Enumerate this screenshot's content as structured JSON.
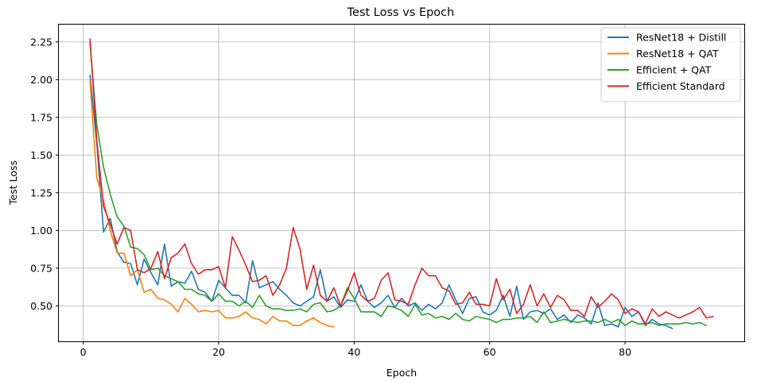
{
  "chart_data": {
    "type": "line",
    "title": "Test Loss vs Epoch",
    "xlabel": "Epoch",
    "ylabel": "Test Loss",
    "xlim": [
      -3.6,
      97.6
    ],
    "ylim": [
      0.265,
      2.365
    ],
    "xticks": [
      0,
      20,
      40,
      60,
      80
    ],
    "yticks": [
      0.5,
      0.75,
      1.0,
      1.25,
      1.5,
      1.75,
      2.0,
      2.25
    ],
    "ytick_labels": [
      "0.50",
      "0.75",
      "1.00",
      "1.25",
      "1.50",
      "1.75",
      "2.00",
      "2.25"
    ],
    "grid": true,
    "legend_position": "top-right",
    "series": [
      {
        "name": "ResNet18 + Distill",
        "color": "#1f77b4",
        "y": [
          2.03,
          1.58,
          0.99,
          1.08,
          0.86,
          0.79,
          0.78,
          0.64,
          0.81,
          0.72,
          0.64,
          0.91,
          0.63,
          0.66,
          0.65,
          0.73,
          0.61,
          0.59,
          0.53,
          0.67,
          0.62,
          0.57,
          0.57,
          0.52,
          0.8,
          0.62,
          0.64,
          0.66,
          0.61,
          0.57,
          0.52,
          0.5,
          0.53,
          0.56,
          0.74,
          0.53,
          0.56,
          0.49,
          0.54,
          0.53,
          0.64,
          0.53,
          0.49,
          0.52,
          0.57,
          0.49,
          0.55,
          0.5,
          0.52,
          0.47,
          0.51,
          0.48,
          0.52,
          0.64,
          0.54,
          0.45,
          0.55,
          0.56,
          0.46,
          0.44,
          0.47,
          0.57,
          0.43,
          0.63,
          0.41,
          0.46,
          0.47,
          0.45,
          0.48,
          0.41,
          0.44,
          0.39,
          0.44,
          0.42,
          0.38,
          0.52,
          0.37,
          0.38,
          0.36,
          0.49,
          0.43,
          0.46,
          0.37,
          0.41,
          0.38,
          0.37,
          0.35
        ]
      },
      {
        "name": "ResNet18 + QAT",
        "color": "#ff7f0e",
        "y": [
          1.99,
          1.35,
          1.2,
          1.0,
          0.85,
          0.85,
          0.7,
          0.74,
          0.59,
          0.61,
          0.55,
          0.54,
          0.51,
          0.46,
          0.55,
          0.51,
          0.46,
          0.47,
          0.46,
          0.47,
          0.42,
          0.42,
          0.43,
          0.46,
          0.42,
          0.41,
          0.38,
          0.43,
          0.4,
          0.4,
          0.37,
          0.37,
          0.4,
          0.42,
          0.39,
          0.37,
          0.36
        ]
      },
      {
        "name": "Efficient + QAT",
        "color": "#2ca02c",
        "y": [
          2.24,
          1.7,
          1.42,
          1.24,
          1.09,
          1.03,
          0.89,
          0.88,
          0.84,
          0.74,
          0.75,
          0.7,
          0.68,
          0.66,
          0.61,
          0.61,
          0.58,
          0.57,
          0.53,
          0.58,
          0.53,
          0.53,
          0.5,
          0.53,
          0.49,
          0.57,
          0.5,
          0.48,
          0.48,
          0.47,
          0.47,
          0.48,
          0.46,
          0.51,
          0.52,
          0.46,
          0.47,
          0.5,
          0.62,
          0.55,
          0.46,
          0.46,
          0.46,
          0.43,
          0.5,
          0.49,
          0.47,
          0.43,
          0.51,
          0.44,
          0.45,
          0.42,
          0.43,
          0.41,
          0.45,
          0.41,
          0.4,
          0.43,
          0.42,
          0.41,
          0.39,
          0.41,
          0.41,
          0.42,
          0.42,
          0.43,
          0.39,
          0.46,
          0.39,
          0.4,
          0.41,
          0.4,
          0.39,
          0.4,
          0.4,
          0.39,
          0.41,
          0.39,
          0.41,
          0.37,
          0.4,
          0.38,
          0.38,
          0.39,
          0.37,
          0.38,
          0.38,
          0.38,
          0.39,
          0.38,
          0.39,
          0.37
        ]
      },
      {
        "name": "Efficient Standard",
        "color": "#d62728",
        "y": [
          2.27,
          1.6,
          1.16,
          1.04,
          0.91,
          1.02,
          1.0,
          0.74,
          0.72,
          0.75,
          0.86,
          0.68,
          0.82,
          0.85,
          0.91,
          0.78,
          0.71,
          0.74,
          0.74,
          0.76,
          0.62,
          0.96,
          0.87,
          0.77,
          0.66,
          0.67,
          0.7,
          0.57,
          0.64,
          0.75,
          1.02,
          0.88,
          0.61,
          0.77,
          0.57,
          0.53,
          0.62,
          0.5,
          0.6,
          0.72,
          0.57,
          0.53,
          0.55,
          0.67,
          0.72,
          0.54,
          0.53,
          0.51,
          0.64,
          0.75,
          0.7,
          0.7,
          0.62,
          0.6,
          0.51,
          0.52,
          0.59,
          0.51,
          0.51,
          0.5,
          0.68,
          0.54,
          0.61,
          0.45,
          0.51,
          0.64,
          0.5,
          0.58,
          0.49,
          0.57,
          0.54,
          0.47,
          0.47,
          0.43,
          0.56,
          0.49,
          0.53,
          0.58,
          0.54,
          0.45,
          0.48,
          0.46,
          0.38,
          0.48,
          0.43,
          0.46,
          0.44,
          0.42,
          0.44,
          0.46,
          0.49,
          0.42,
          0.43
        ]
      }
    ]
  }
}
